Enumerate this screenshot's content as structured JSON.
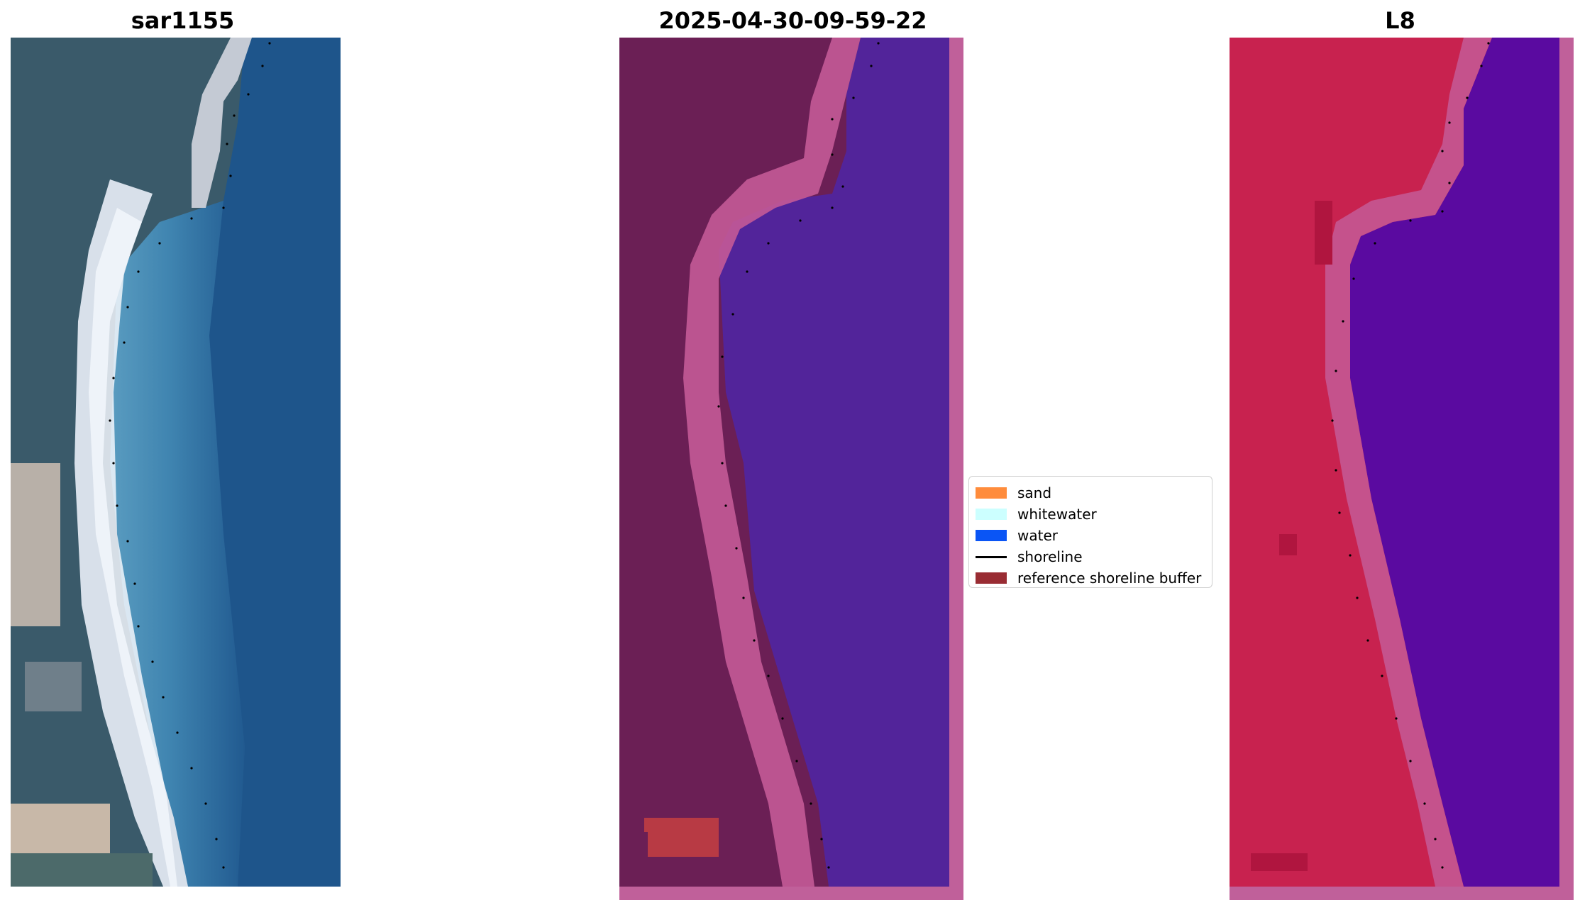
{
  "panels": [
    {
      "title": "sar1155"
    },
    {
      "title": "2025-04-30-09-59-22"
    },
    {
      "title": "L8"
    }
  ],
  "legend": {
    "items": [
      {
        "label": "sand",
        "color": "#ff8c3c",
        "kind": "patch"
      },
      {
        "label": "whitewater",
        "color": "#ccffff",
        "kind": "patch"
      },
      {
        "label": "water",
        "color": "#0a55f5",
        "kind": "patch"
      },
      {
        "label": "shoreline",
        "color": "#000000",
        "kind": "line"
      },
      {
        "label": "reference shoreline buffer",
        "color": "#992c33",
        "kind": "patch"
      }
    ]
  },
  "colors": {
    "rgb_land": "#3c5a68",
    "rgb_sand": "#cfdbe4",
    "rgb_shallow": "#4b8fb4",
    "rgb_deep": "#1e5088",
    "class_land": "#6b1f55",
    "class_sand": "#c45a97",
    "class_water": "#52249a",
    "ndwi_land": "#c8204f",
    "ndwi_water": "#5a0aa0",
    "ndwi_sand": "#c45a97",
    "shoreline_dots": "#000000",
    "buffer": "#b83a44"
  }
}
